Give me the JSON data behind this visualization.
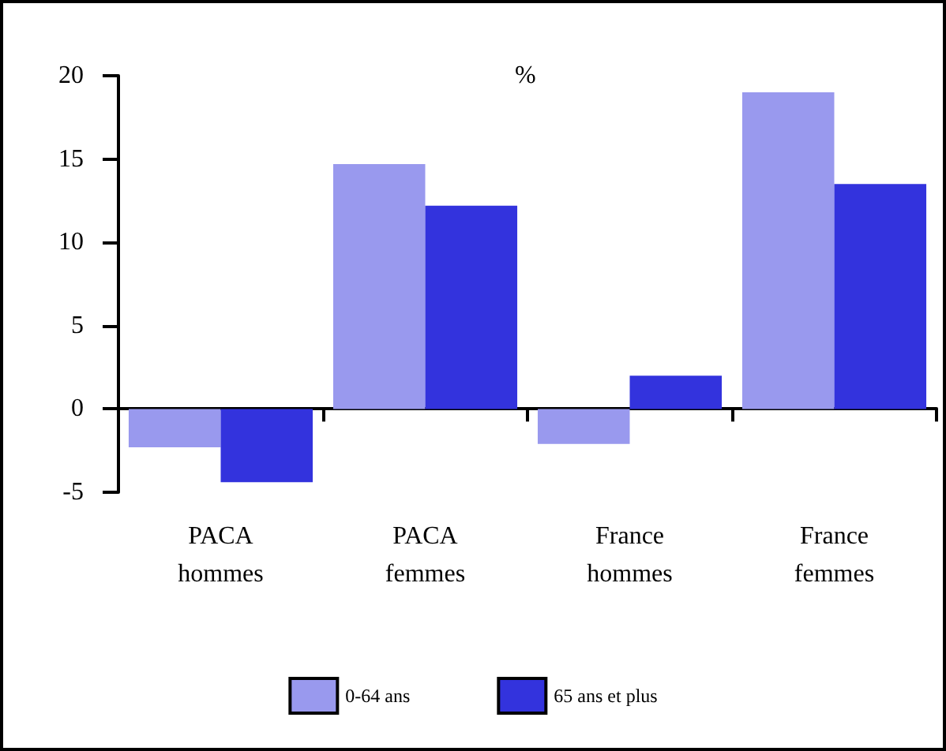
{
  "chart_data": {
    "type": "bar",
    "ylabel": "%",
    "categories": [
      "PACA\nhommes",
      "PACA\nfemmes",
      "France\nhommes",
      "France\nfemmes"
    ],
    "series": [
      {
        "name": "0-64 ans",
        "color": "#9999ee",
        "values": [
          -2.3,
          14.7,
          -2.1,
          19.0
        ]
      },
      {
        "name": "65 ans et plus",
        "color": "#3333dd",
        "values": [
          -4.4,
          12.2,
          2.0,
          13.5
        ]
      }
    ],
    "ylim": [
      -5,
      20
    ],
    "yticks": [
      -5,
      0,
      5,
      10,
      15,
      20
    ],
    "legend": "bottom"
  }
}
